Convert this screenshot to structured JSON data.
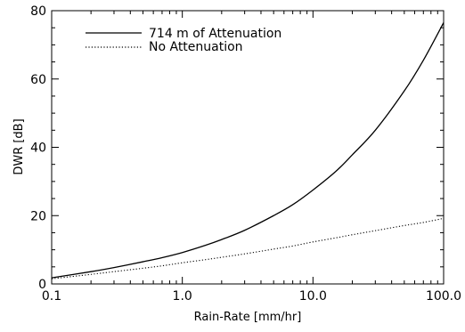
{
  "chart_data": {
    "type": "line",
    "title": "",
    "xlabel": "Rain-Rate [mm/hr]",
    "ylabel": "DWR [dB]",
    "xscale": "log",
    "xlim": [
      0.1,
      100.0
    ],
    "ylim": [
      0,
      80
    ],
    "xticks": [
      {
        "value": 0.1,
        "label": "0.1"
      },
      {
        "value": 1.0,
        "label": "1.0"
      },
      {
        "value": 10.0,
        "label": "10.0"
      },
      {
        "value": 100.0,
        "label": "100.0"
      }
    ],
    "yticks": [
      {
        "value": 0,
        "label": "0"
      },
      {
        "value": 20,
        "label": "20"
      },
      {
        "value": 40,
        "label": "40"
      },
      {
        "value": 60,
        "label": "60"
      },
      {
        "value": 80,
        "label": "80"
      }
    ],
    "grid": false,
    "legend_position": "top-left",
    "series": [
      {
        "name": "714 m of Attenuation",
        "style": "solid",
        "color": "#000000",
        "x": [
          0.1,
          0.2,
          0.3,
          0.5,
          0.7,
          1.0,
          1.5,
          2.0,
          3.0,
          5.0,
          7.0,
          10.0,
          15.0,
          20.0,
          30.0,
          50.0,
          70.0,
          100.0
        ],
        "y": [
          1.8,
          3.6,
          4.8,
          6.5,
          7.7,
          9.2,
          11.3,
          13.0,
          15.7,
          20.0,
          23.2,
          27.5,
          33.0,
          37.8,
          45.0,
          56.5,
          65.5,
          76.5
        ]
      },
      {
        "name": "No Attenuation",
        "style": "dotted",
        "color": "#000000",
        "x": [
          0.1,
          0.2,
          0.3,
          0.5,
          0.7,
          1.0,
          1.5,
          2.0,
          3.0,
          5.0,
          7.0,
          10.0,
          15.0,
          20.0,
          30.0,
          50.0,
          70.0,
          100.0
        ],
        "y": [
          1.5,
          2.8,
          3.6,
          4.6,
          5.3,
          6.2,
          7.1,
          7.8,
          8.8,
          10.2,
          11.1,
          12.3,
          13.5,
          14.4,
          15.6,
          17.1,
          18.0,
          19.2
        ]
      }
    ]
  }
}
